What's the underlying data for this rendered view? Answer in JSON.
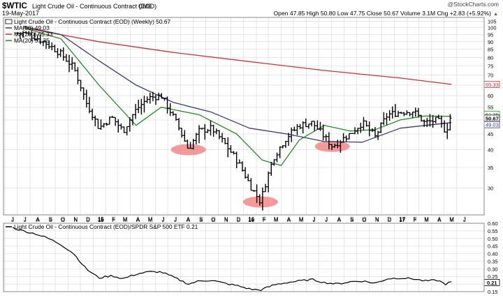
{
  "header": {
    "symbol": "$WTIC",
    "name": "Light Crude Oil - Continuous Contract (EOD)",
    "exchange": "CME",
    "date": "19-May-2017",
    "brand": "@StockCharts.com",
    "quote": "Open 47.85  High 50.80  Low 47.75  Close 50.67  Volume 3.1M  Chg +2.83 (+5.92%)",
    "upArrow": "▲"
  },
  "legend": {
    "main": "Light Crude Oil - Continuous Contract (EOD) (Weekly) 50.67",
    "ma50": "MA(50) 49.03",
    "ma200": "MA(200) 65.33",
    "ma20": "MA(20) 51.35"
  },
  "lowerLegend": "Light Crude Oil - Continuous Contract (EOD)/SPDR S&P 500 ETF 0.21",
  "colors": {
    "price": "#000000",
    "ma50": "#3a3a78",
    "ma200": "#c83232",
    "ma20": "#2a8a2a",
    "highlight": "#f07878",
    "grid": "#dcdcdc"
  },
  "chart_data": [
    {
      "type": "ohlc",
      "title": "Light Crude Oil - Continuous Contract (EOD) (Weekly) 50.67",
      "frequency": "weekly",
      "xlabel": "",
      "ylabel": "",
      "yscale": "log",
      "ylim": [
        24.5,
        108
      ],
      "y_ticks": [
        30,
        35,
        40,
        45,
        50,
        55,
        60,
        65,
        70,
        75,
        80,
        85,
        90,
        95,
        100,
        105
      ],
      "x_tick_labels": [
        "J",
        "J",
        "A",
        "S",
        "O",
        "N",
        "D",
        "15",
        "F",
        "M",
        "A",
        "M",
        "J",
        "J",
        "A",
        "S",
        "O",
        "N",
        "D",
        "16",
        "F",
        "M",
        "A",
        "M",
        "J",
        "J",
        "A",
        "S",
        "O",
        "N",
        "D",
        "17",
        "F",
        "M",
        "A",
        "M",
        "J"
      ],
      "year_labels": [
        "15",
        "16",
        "17"
      ],
      "grid": true,
      "last_value_labels": [
        "65.33",
        "51.35",
        "50.67",
        "49.03"
      ],
      "series": [
        {
          "name": "Light Crude Oil - Continuous Contract (EOD) (Weekly) 50.67",
          "kind": "weekly price bars (approx. closes at key dates)",
          "x": [
            "2014-07-15",
            "2014-08-15",
            "2014-09-15",
            "2014-10-15",
            "2014-11-15",
            "2014-12-15",
            "2015-01-15",
            "2015-02-15",
            "2015-03-15",
            "2015-04-15",
            "2015-05-15",
            "2015-06-15",
            "2015-07-15",
            "2015-08-20",
            "2015-09-15",
            "2015-10-15",
            "2015-11-15",
            "2015-12-15",
            "2016-01-20",
            "2016-02-11",
            "2016-03-15",
            "2016-04-15",
            "2016-05-15",
            "2016-06-15",
            "2016-07-15",
            "2016-08-03",
            "2016-09-15",
            "2016-10-15",
            "2016-11-15",
            "2016-12-15",
            "2017-01-15",
            "2017-02-15",
            "2017-03-15",
            "2017-04-15",
            "2017-05-05",
            "2017-05-19"
          ],
          "y": [
            96,
            93,
            88,
            82,
            74,
            57,
            47,
            51,
            46,
            54,
            59,
            60,
            51,
            40,
            46,
            47,
            42,
            37,
            30,
            27,
            38,
            44,
            48,
            49,
            44,
            41,
            45,
            49,
            44,
            52,
            53,
            53.5,
            49,
            50,
            46,
            50.67
          ]
        },
        {
          "name": "MA(50) 49.03",
          "x": [
            "2014-07-15",
            "2014-10-15",
            "2015-01-15",
            "2015-04-15",
            "2015-07-15",
            "2015-10-15",
            "2016-01-15",
            "2016-04-15",
            "2016-07-15",
            "2016-10-15",
            "2017-01-15",
            "2017-05-19"
          ],
          "y": [
            101,
            95,
            78,
            65,
            57,
            53,
            47,
            45,
            42.5,
            42.3,
            47,
            49.03
          ]
        },
        {
          "name": "MA(200) 65.33",
          "x": [
            "2014-07-15",
            "2015-01-15",
            "2015-07-15",
            "2016-01-15",
            "2016-07-15",
            "2017-01-15",
            "2017-05-19"
          ],
          "y": [
            100,
            90,
            83,
            77.5,
            72.5,
            68.5,
            65.33
          ]
        },
        {
          "name": "MA(20) 51.35",
          "x": [
            "2014-07-15",
            "2014-10-15",
            "2015-01-15",
            "2015-04-15",
            "2015-06-15",
            "2015-09-15",
            "2015-12-15",
            "2016-02-15",
            "2016-04-01",
            "2016-05-15",
            "2016-07-15",
            "2016-09-15",
            "2016-11-15",
            "2017-01-15",
            "2017-03-15",
            "2017-05-19"
          ],
          "y": [
            100,
            92,
            65,
            48,
            55,
            52,
            45,
            37,
            35.5,
            43,
            48,
            46,
            46.5,
            50,
            51.5,
            51.35
          ]
        }
      ],
      "annotations": [
        {
          "kind": "ellipse",
          "x": "2015-08-20",
          "y": 40
        },
        {
          "kind": "ellipse",
          "x": "2016-02-11",
          "y": 27
        },
        {
          "kind": "ellipse",
          "x": "2016-08-03",
          "y": 41
        }
      ]
    },
    {
      "type": "line",
      "title": "Light Crude Oil - Continuous Contract (EOD)/SPDR S&P 500 ETF 0.21",
      "xlabel": "",
      "ylabel": "",
      "ylim": [
        0.15,
        0.6
      ],
      "y_ticks": [
        0.15,
        0.2,
        0.25,
        0.3,
        0.35,
        0.4,
        0.45,
        0.5,
        0.55,
        0.6
      ],
      "last_value_label": "0.21",
      "series": [
        {
          "name": "Light Crude Oil - Continuous Contract (EOD)/SPDR S&P 500 ETF 0.21",
          "x": [
            "2014-06-20",
            "2014-07-15",
            "2014-08-15",
            "2014-09-15",
            "2014-10-15",
            "2014-11-15",
            "2014-12-15",
            "2015-01-15",
            "2015-02-15",
            "2015-03-15",
            "2015-04-15",
            "2015-05-15",
            "2015-06-15",
            "2015-07-15",
            "2015-08-20",
            "2015-09-15",
            "2015-10-15",
            "2015-11-15",
            "2015-12-15",
            "2016-01-20",
            "2016-02-11",
            "2016-03-15",
            "2016-04-15",
            "2016-05-15",
            "2016-06-15",
            "2016-07-15",
            "2016-08-15",
            "2016-09-15",
            "2016-10-15",
            "2016-11-15",
            "2016-12-15",
            "2017-01-15",
            "2017-02-15",
            "2017-03-15",
            "2017-04-15",
            "2017-05-05",
            "2017-05-19"
          ],
          "y": [
            0.57,
            0.55,
            0.53,
            0.5,
            0.46,
            0.4,
            0.3,
            0.24,
            0.255,
            0.235,
            0.265,
            0.28,
            0.28,
            0.245,
            0.2,
            0.22,
            0.225,
            0.205,
            0.19,
            0.165,
            0.16,
            0.195,
            0.21,
            0.22,
            0.23,
            0.21,
            0.2,
            0.215,
            0.22,
            0.205,
            0.235,
            0.24,
            0.235,
            0.22,
            0.225,
            0.2,
            0.215
          ]
        }
      ]
    }
  ]
}
